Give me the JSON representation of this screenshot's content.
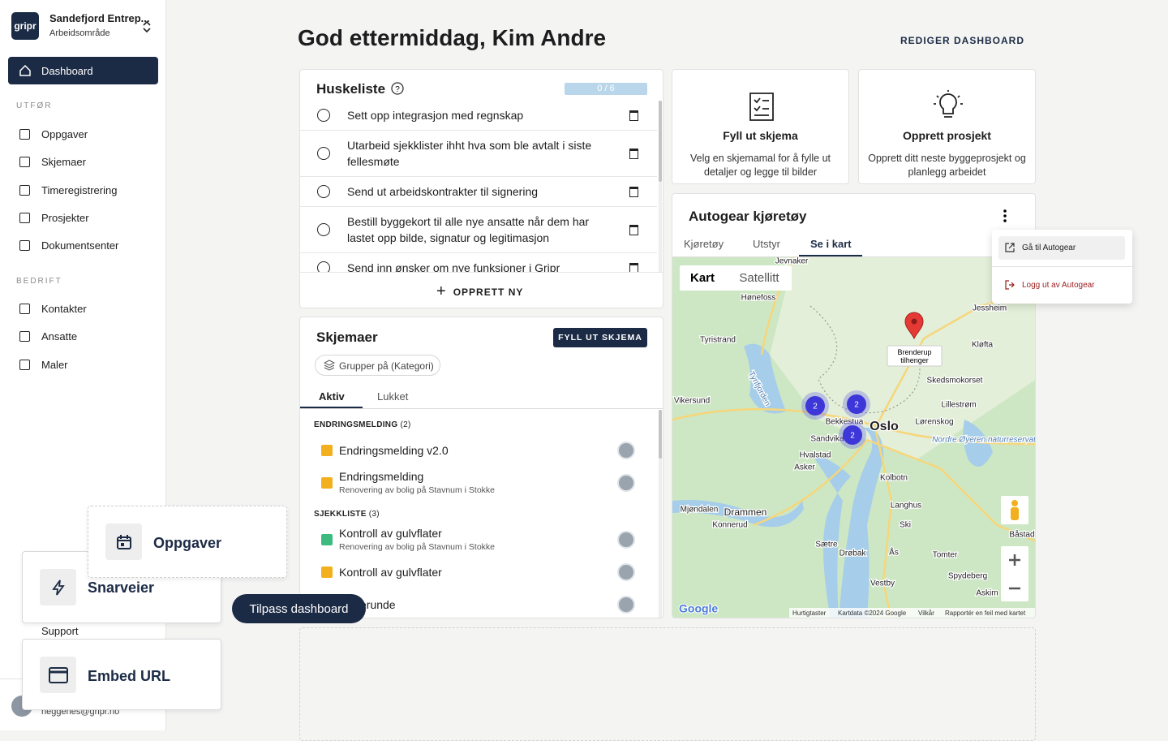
{
  "sidebar": {
    "logo": "gripr",
    "org": "Sandefjord Entrep...",
    "workspace": "Arbeidsområde",
    "active": "Dashboard",
    "sections": [
      {
        "title": "UTFØR",
        "items": [
          "Oppgaver",
          "Skjemaer",
          "Timeregistrering",
          "Prosjekter",
          "Dokumentsenter"
        ]
      },
      {
        "title": "BEDRIFT",
        "items": [
          "Kontakter",
          "Ansatte",
          "Maler"
        ]
      }
    ],
    "support": "Support",
    "email": "heggenes@gripr.no"
  },
  "header": {
    "greeting": "God ettermiddag, Kim Andre",
    "edit": "REDIGER DASHBOARD"
  },
  "checklist": {
    "title": "Huskeliste",
    "progress": "0 / 6",
    "items": [
      "Sett opp integrasjon med regnskap",
      "Utarbeid sjekklister ihht hva som ble avtalt i siste fellesmøte",
      "Send ut arbeidskontrakter til signering",
      "Bestill byggekort til alle nye ansatte når dem har lastet opp bilde, signatur og legitimasjon",
      "Send inn ønsker om nye funksjoner i Gripr"
    ],
    "create": "OPPRETT NY"
  },
  "forms": {
    "title": "Skjemaer",
    "button": "FYLL UT SKJEMA",
    "group_by": "Grupper på (Kategori)",
    "tabs": [
      "Aktiv",
      "Lukket"
    ],
    "groups": [
      {
        "name": "ENDRINGSMELDING",
        "count": "(2)",
        "items": [
          {
            "title": "Endringsmelding v2.0",
            "color": "#f2b01e"
          },
          {
            "title": "Endringsmelding",
            "subtitle": "Renovering av bolig på Stavnum i Stokke",
            "color": "#f2b01e"
          }
        ]
      },
      {
        "name": "SJEKKLISTE",
        "count": "(3)",
        "items": [
          {
            "title": "Kontroll av gulvflater",
            "subtitle": "Renovering av bolig på Stavnum i Stokke",
            "color": "#3dbb7e"
          },
          {
            "title": "Kontroll av gulvflater",
            "color": "#f2b01e"
          },
          {
            "title": "erunde",
            "color": "#f2b01e"
          }
        ]
      }
    ]
  },
  "cards": [
    {
      "title": "Fyll ut skjema",
      "text": "Velg en skjemamal for å fylle ut detaljer og legge til bilder"
    },
    {
      "title": "Opprett prosjekt",
      "text": "Opprett ditt neste byggeprosjekt og planlegg arbeidet"
    }
  ],
  "autogear": {
    "title": "Autogear kjøretøy",
    "tabs": [
      "Kjøretøy",
      "Utstyr",
      "Se i kart"
    ],
    "map_types": [
      "Kart",
      "Satellitt"
    ],
    "marker": "Brenderup tilhenger",
    "clusters": [
      "2",
      "2",
      "2"
    ],
    "places": [
      "Jevnaker",
      "Hønefoss",
      "Tyristrand",
      "Vikersund",
      "Bekkestua",
      "Oslo",
      "Sandvika",
      "Hvalstad",
      "Asker",
      "Lillestrøm",
      "Skedsmokorset",
      "Lørenskog",
      "Jessheim",
      "Kløfta",
      "Drammen",
      "Mjøndalen",
      "Konnerud",
      "Kolbotn",
      "Langhus",
      "Ski",
      "Drøbak",
      "Sætre",
      "Ås",
      "Vestby",
      "Tomter",
      "Spydeberg",
      "Askim",
      "Båstad",
      "Nordre Øyeren naturreservat",
      "Tyrifjorden"
    ],
    "logo": "Google",
    "attribution": [
      "Hurtigtaster",
      "Kartdata ©2024 Google",
      "Vilkår",
      "Rapportér en feil med kartet"
    ],
    "menu": [
      "Gå til Autogear",
      "Logg ut av Autogear"
    ]
  },
  "overlay": {
    "widgets": [
      "Oppgaver",
      "Snarveier",
      "Embed URL"
    ],
    "tooltip": "Tilpass dashboard"
  }
}
